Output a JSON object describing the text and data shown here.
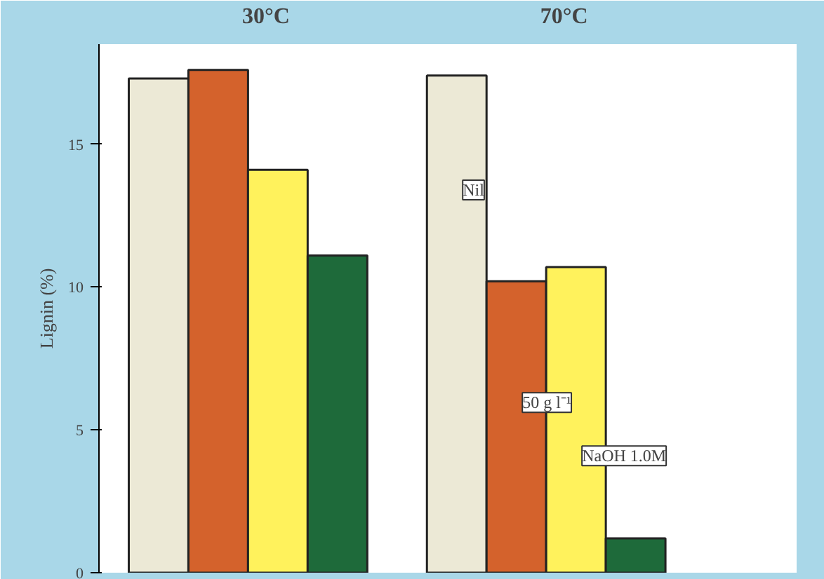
{
  "chart_data": {
    "type": "bar",
    "ylabel": "Lignin (%)",
    "categories": [
      "30°C",
      "70°C"
    ],
    "series": [
      {
        "name": "Nil",
        "color": "#ece9d6",
        "values": [
          17.3,
          17.4
        ]
      },
      {
        "name": "50 g l⁻¹",
        "color": "#d4622c",
        "values": [
          17.6,
          10.2
        ]
      },
      {
        "name": "NaOH 1.0M",
        "color": "#fff25c",
        "values": [
          14.1,
          10.7
        ]
      },
      {
        "color": "#1e6a3a",
        "values": [
          11.1,
          1.2
        ]
      }
    ],
    "ylim": [
      0,
      18.5
    ],
    "yticks": [
      0,
      5,
      10,
      15
    ],
    "grid": false
  }
}
